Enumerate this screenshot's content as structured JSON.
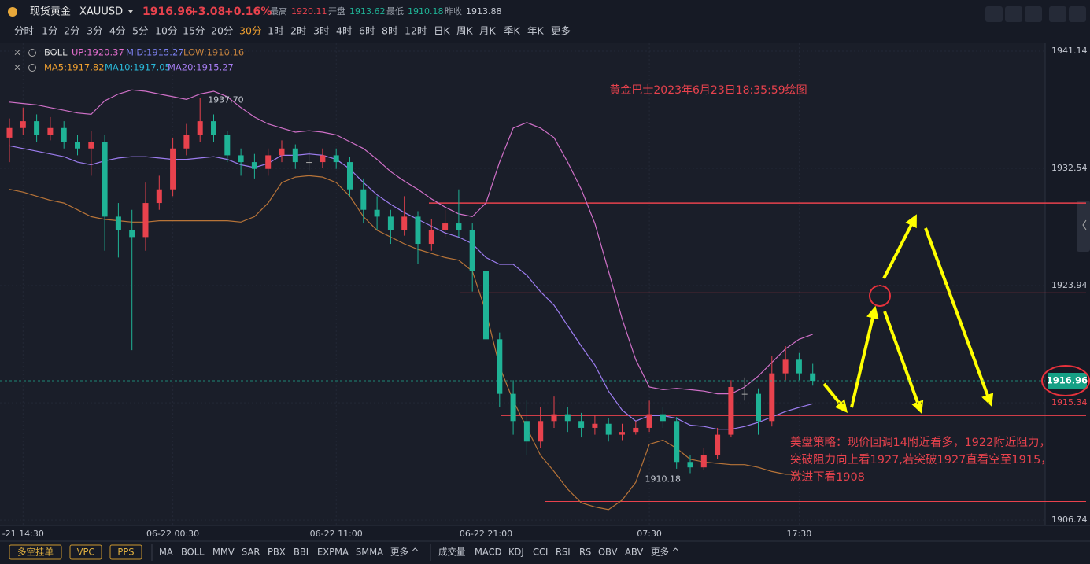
{
  "header": {
    "symbol_name": "现货黄金",
    "symbol": "XAUUSD",
    "price": "1916.96",
    "change": "+3.08",
    "change_pct": "+0.16%",
    "high_label": "最高",
    "high": "1920.11",
    "open_label": "开盘",
    "open": "1913.62",
    "low_label": "最低",
    "low": "1910.18",
    "prev_label": "昨收",
    "prev": "1913.88"
  },
  "periods": [
    "分时",
    "1分",
    "2分",
    "3分",
    "4分",
    "5分",
    "10分",
    "15分",
    "20分",
    "30分",
    "1时",
    "2时",
    "3时",
    "4时",
    "6时",
    "8时",
    "12时",
    "日K",
    "周K",
    "月K",
    "季K",
    "年K",
    "更多"
  ],
  "active_period": 9,
  "legend": {
    "boll": {
      "label": "BOLL",
      "up": "UP:1920.37",
      "mid": "MID:1915.27",
      "low": "LOW:1910.16"
    },
    "ma": {
      "ma5": "MA5:1917.82",
      "ma10": "MA10:1917.05",
      "ma20": "MA20:1915.27"
    }
  },
  "annotations": {
    "title": "黄金巴士2023年6月23日18:35:59绘图",
    "strategy": [
      "美盘策略：现价回调14附近看多，1922附近阻力，",
      "突破阻力向上看1927,若突破1927直看空至1915，",
      "激进下看1908"
    ]
  },
  "toolbar": {
    "buttons": [
      "多空挂单",
      "VPC",
      "PPS"
    ],
    "main_indicators": [
      "MA",
      "BOLL",
      "MMV",
      "SAR",
      "PBX",
      "BBI",
      "EXPMA",
      "SMMA",
      "更多 ^"
    ],
    "sub_indicators": [
      "成交量",
      "MACD",
      "KDJ",
      "CCI",
      "RSI",
      "RS",
      "OBV",
      "ABV",
      "更多 ^"
    ]
  },
  "chart_data": {
    "type": "candlestick",
    "ylim": [
      1906.34,
      1941.72
    ],
    "yticks": [
      1941.14,
      1932.54,
      1923.94,
      1915.34,
      1906.74
    ],
    "last_price": 1916.96,
    "lines": [
      1930.0,
      1923.4,
      1914.4,
      1908.1
    ],
    "max_label": "1937.70",
    "min_label": "1910.18",
    "categories": [
      null,
      "-21 14:30",
      null,
      null,
      null,
      null,
      null,
      null,
      null,
      null,
      null,
      null,
      "06-22 00:30",
      null,
      null,
      null,
      null,
      null,
      null,
      null,
      null,
      null,
      null,
      null,
      "06-22 11:00",
      null,
      null,
      null,
      null,
      null,
      null,
      null,
      null,
      null,
      null,
      "06-22 21:00",
      null,
      null,
      null,
      null,
      null,
      null,
      null,
      null,
      null,
      null,
      null,
      "07:30",
      null,
      null,
      null,
      null,
      null,
      null,
      null,
      null,
      null,
      null,
      "17:30",
      null
    ],
    "candles": [
      [
        1934.8,
        1936.2,
        1933.0,
        1935.5
      ],
      [
        1935.5,
        1937.0,
        1935.0,
        1936
      ],
      [
        1936,
        1936.5,
        1934.5,
        1935
      ],
      [
        1935,
        1936.3,
        1934.6,
        1935.5
      ],
      [
        1935.5,
        1936,
        1934,
        1934.5
      ],
      [
        1934.5,
        1935,
        1933.5,
        1934
      ],
      [
        1934,
        1935.3,
        1932,
        1934.5
      ],
      [
        1934.5,
        1935,
        1926.5,
        1929
      ],
      [
        1929,
        1930,
        1926,
        1928
      ],
      [
        1928,
        1929.5,
        1919.2,
        1927.5
      ],
      [
        1927.5,
        1931.5,
        1926.5,
        1930
      ],
      [
        1930,
        1932,
        1929.5,
        1931
      ],
      [
        1931,
        1934.8,
        1930.5,
        1934
      ],
      [
        1934,
        1935.8,
        1933.5,
        1935
      ],
      [
        1935,
        1937.7,
        1934.5,
        1936
      ],
      [
        1936,
        1936.5,
        1934.5,
        1935
      ],
      [
        1935,
        1935.3,
        1933,
        1933.5
      ],
      [
        1933.5,
        1934,
        1932,
        1933
      ],
      [
        1933,
        1933.6,
        1931.8,
        1932.5
      ],
      [
        1932.5,
        1934,
        1932,
        1933.5
      ],
      [
        1933.5,
        1934.6,
        1933,
        1934
      ],
      [
        1934,
        1934.3,
        1932.5,
        1933
      ],
      [
        1933,
        1933.8,
        1932.4,
        1933
      ],
      [
        1933,
        1934,
        1932.6,
        1933.5
      ],
      [
        1933.5,
        1934,
        1932.5,
        1933
      ],
      [
        1933,
        1933.4,
        1930.5,
        1931
      ],
      [
        1931,
        1931.8,
        1928.5,
        1929.5
      ],
      [
        1929.5,
        1930.5,
        1928,
        1929
      ],
      [
        1929,
        1929.5,
        1927,
        1928
      ],
      [
        1928,
        1930.5,
        1927.6,
        1929
      ],
      [
        1929,
        1929.4,
        1925.5,
        1927
      ],
      [
        1927,
        1928.8,
        1926.5,
        1928
      ],
      [
        1928,
        1929.5,
        1927.5,
        1928.5
      ],
      [
        1928.5,
        1931,
        1927.5,
        1928
      ],
      [
        1928,
        1928.5,
        1923.5,
        1925
      ],
      [
        1925,
        1925.5,
        1918.5,
        1920
      ],
      [
        1920,
        1920.5,
        1915,
        1916
      ],
      [
        1916,
        1917,
        1913,
        1914
      ],
      [
        1914,
        1915.5,
        1911.5,
        1912.5
      ],
      [
        1912.5,
        1915,
        1912,
        1914
      ],
      [
        1914,
        1915.8,
        1913.5,
        1914.5
      ],
      [
        1914.5,
        1915,
        1913.2,
        1914
      ],
      [
        1914,
        1914.6,
        1912.8,
        1913.5
      ],
      [
        1913.5,
        1914.4,
        1913,
        1913.8
      ],
      [
        1913.8,
        1914.2,
        1912.5,
        1913
      ],
      [
        1913,
        1913.8,
        1912.6,
        1913.2
      ],
      [
        1913.2,
        1914,
        1913,
        1913.5
      ],
      [
        1913.5,
        1915.5,
        1913.2,
        1914.5
      ],
      [
        1914.5,
        1915,
        1913.5,
        1914
      ],
      [
        1914,
        1914.3,
        1910.5,
        1911
      ],
      [
        1911,
        1911.5,
        1910.18,
        1910.6
      ],
      [
        1910.6,
        1912,
        1910.4,
        1911.5
      ],
      [
        1911.5,
        1913.5,
        1911.2,
        1913
      ],
      [
        1913,
        1917,
        1912.8,
        1916.5
      ],
      [
        1916,
        1917.2,
        1915.5,
        1916
      ],
      [
        1916,
        1916.4,
        1913,
        1914
      ],
      [
        1914,
        1918.8,
        1913.6,
        1917.5
      ],
      [
        1917.5,
        1919.5,
        1917,
        1918.5
      ],
      [
        1918.5,
        1919,
        1917,
        1917.5
      ],
      [
        1917.5,
        1918.2,
        1916.6,
        1916.96
      ]
    ],
    "boll_upper": [
      1937.4,
      1937.3,
      1937.2,
      1937.0,
      1936.8,
      1936.6,
      1936.5,
      1937.5,
      1938.0,
      1938.3,
      1938.2,
      1938.0,
      1937.8,
      1937.6,
      1938.0,
      1938.2,
      1937.8,
      1937.0,
      1936.3,
      1935.8,
      1935.5,
      1935.2,
      1935.3,
      1935.2,
      1935.0,
      1934.5,
      1934.0,
      1933.2,
      1932.3,
      1931.6,
      1931.0,
      1930.3,
      1929.7,
      1929.2,
      1929.0,
      1930.0,
      1933.0,
      1935.5,
      1935.9,
      1935.5,
      1934.8,
      1933.0,
      1931.0,
      1928.5,
      1925.0,
      1921.5,
      1918.5,
      1916.5,
      1916.3,
      1916.4,
      1916.3,
      1916.2,
      1916.0,
      1916.0,
      1916.5,
      1917.3,
      1918.3,
      1919.3,
      1920.0,
      1920.37
    ],
    "boll_mid": [
      1934.2,
      1934.0,
      1933.8,
      1933.6,
      1933.4,
      1933.0,
      1932.8,
      1933.1,
      1933.3,
      1933.4,
      1933.4,
      1933.3,
      1933.2,
      1933.2,
      1933.3,
      1933.4,
      1933.2,
      1932.8,
      1932.6,
      1932.9,
      1933.5,
      1933.5,
      1933.6,
      1933.5,
      1933.2,
      1932.5,
      1931.5,
      1930.6,
      1929.9,
      1929.3,
      1928.8,
      1928.3,
      1927.8,
      1927.5,
      1927.0,
      1926.0,
      1925.5,
      1925.5,
      1924.7,
      1923.5,
      1922.5,
      1921.0,
      1919.5,
      1918.1,
      1916.2,
      1914.8,
      1914.0,
      1914.4,
      1914.4,
      1914.2,
      1913.7,
      1913.6,
      1913.4,
      1913.4,
      1913.6,
      1913.9,
      1914.3,
      1914.7,
      1915.0,
      1915.27
    ],
    "boll_lower": [
      1931.0,
      1930.8,
      1930.5,
      1930.2,
      1930.0,
      1929.5,
      1929.0,
      1928.8,
      1928.7,
      1928.6,
      1928.6,
      1928.7,
      1928.7,
      1928.7,
      1928.7,
      1928.7,
      1928.7,
      1928.6,
      1929.0,
      1930.0,
      1931.5,
      1931.9,
      1932.0,
      1931.9,
      1931.5,
      1930.5,
      1929.0,
      1928.0,
      1927.5,
      1927.0,
      1926.6,
      1926.3,
      1926.0,
      1925.8,
      1925.0,
      1922.0,
      1918.0,
      1915.5,
      1913.5,
      1911.5,
      1910.3,
      1909.0,
      1908.0,
      1907.7,
      1907.5,
      1908.2,
      1909.5,
      1912.3,
      1912.6,
      1912.0,
      1911.2,
      1911.0,
      1910.9,
      1910.8,
      1910.8,
      1910.6,
      1910.3,
      1910.1,
      1910.1,
      1910.16
    ]
  }
}
